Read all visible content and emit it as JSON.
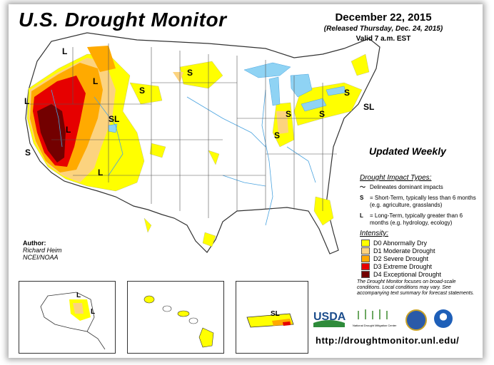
{
  "title": "U.S. Drought Monitor",
  "date": "December 22, 2015",
  "released": "(Released Thursday, Dec. 24, 2015)",
  "valid": "Valid 7 a.m. EST",
  "updated": "Updated Weekly",
  "impact": {
    "heading": "Drought Impact Types:",
    "delineates": "Delineates dominant impacts",
    "short_symbol": "S",
    "short_text": "= Short-Term, typically less than 6 months (e.g. agriculture, grasslands)",
    "long_symbol": "L",
    "long_text": "= Long-Term, typically greater than 6 months (e.g. hydrology, ecology)"
  },
  "intensity": {
    "heading": "Intensity:",
    "levels": [
      {
        "label": "D0 Abnormally Dry",
        "color": "#ffff00"
      },
      {
        "label": "D1 Moderate Drought",
        "color": "#fcd37f"
      },
      {
        "label": "D2 Severe Drought",
        "color": "#ffaa00"
      },
      {
        "label": "D3 Extreme Drought",
        "color": "#e60000"
      },
      {
        "label": "D4 Exceptional Drought",
        "color": "#730000"
      }
    ]
  },
  "note": "The Drought Monitor focuses on broad-scale conditions. Local conditions may vary. See accompanying text summary for forecast statements.",
  "author": {
    "heading": "Author:",
    "name": "Richard Heim",
    "org": "NCEI/NOAA"
  },
  "url": "http://droughtmonitor.unl.edu/",
  "logos": {
    "usda": "USDA",
    "ndmc": "National Drought Mitigation Center"
  },
  "map_labels": {
    "L": "L",
    "S": "S",
    "SL": "SL"
  },
  "colors": {
    "water": "#8fd3f4",
    "rivers": "#4aa3df",
    "borders": "#555555"
  }
}
